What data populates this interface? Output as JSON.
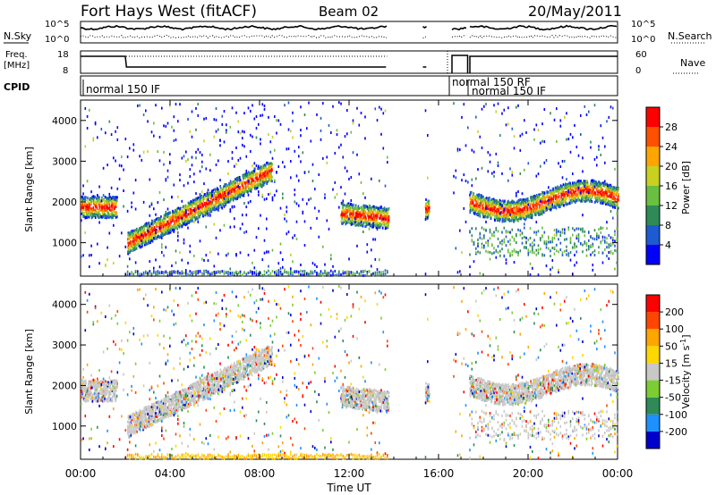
{
  "header": {
    "station": "Fort Hays West (fitACF)",
    "beam": "Beam 02",
    "date": "20/May/2011"
  },
  "top_strip": {
    "nsky_label": "N.Sky",
    "nsearch_label": "N.Search",
    "freq_label_1": "Freq.",
    "freq_label_2": "[MHz]",
    "nave_label": "Nave",
    "cpid_label": "CPID",
    "noise_ticks": [
      "10^5",
      "10^0"
    ],
    "freq_ticks": [
      "18",
      "8"
    ],
    "nave_ticks": [
      "60",
      "0"
    ],
    "cpid_segments": [
      {
        "label": "normal 150 IF",
        "start_hour": 0.2
      },
      {
        "label": "normal 150 RF",
        "start_hour": 16.6
      },
      {
        "label": "normal 150 IF",
        "start_hour": 17.4
      }
    ]
  },
  "chart_data": [
    {
      "type": "heatmap",
      "name": "power",
      "xlabel": "",
      "ylabel": "Slant Range [km]",
      "xlim": [
        0,
        24
      ],
      "ylim": [
        180,
        4500
      ],
      "yticks": [
        1000,
        2000,
        3000,
        4000
      ],
      "colorbar_label": "Power [dB]",
      "colorbar_ticks": [
        "4",
        "8",
        "12",
        "16",
        "20",
        "24",
        "28"
      ],
      "colorbar_colors": [
        "#0000ff",
        "#1e5ad2",
        "#2e8b57",
        "#6abf40",
        "#c8d020",
        "#ffa500",
        "#ff5000",
        "#ff0000"
      ],
      "gaps_hours": [
        [
          13.7,
          15.3
        ],
        [
          15.5,
          16.6
        ]
      ],
      "features": [
        {
          "desc": "band",
          "start_hour": 0,
          "end_hour": 1.5,
          "range_km": [
            1700,
            2100
          ]
        },
        {
          "desc": "band",
          "start_hour": 2,
          "end_hour": 8.5,
          "range_start_km": 1000,
          "range_end_km": 2800
        },
        {
          "desc": "band",
          "start_hour": 11.6,
          "end_hour": 13.6,
          "range_km": [
            1500,
            2000
          ]
        },
        {
          "desc": "band",
          "start_hour": 17.3,
          "end_hour": 24,
          "range_km": [
            1700,
            2400
          ]
        }
      ]
    },
    {
      "type": "heatmap",
      "name": "velocity",
      "xlabel": "Time UT",
      "ylabel": "Slant Range [km]",
      "xlim": [
        0,
        24
      ],
      "ylim": [
        180,
        4500
      ],
      "yticks": [
        1000,
        2000,
        3000,
        4000
      ],
      "xticks": [
        "00:00",
        "04:00",
        "08:00",
        "12:00",
        "16:00",
        "20:00",
        "00:00"
      ],
      "colorbar_label": "Velocity [m s^-1]",
      "colorbar_ticks": [
        "200",
        "100",
        "50",
        "15",
        "-15",
        "-50",
        "-100",
        "-200"
      ],
      "colorbar_colors": [
        "#0000cd",
        "#1e90ff",
        "#2e8b57",
        "#7ccd32",
        "#c8c8c8",
        "#ffd700",
        "#ffa500",
        "#ff4500",
        "#ff0000"
      ]
    }
  ]
}
